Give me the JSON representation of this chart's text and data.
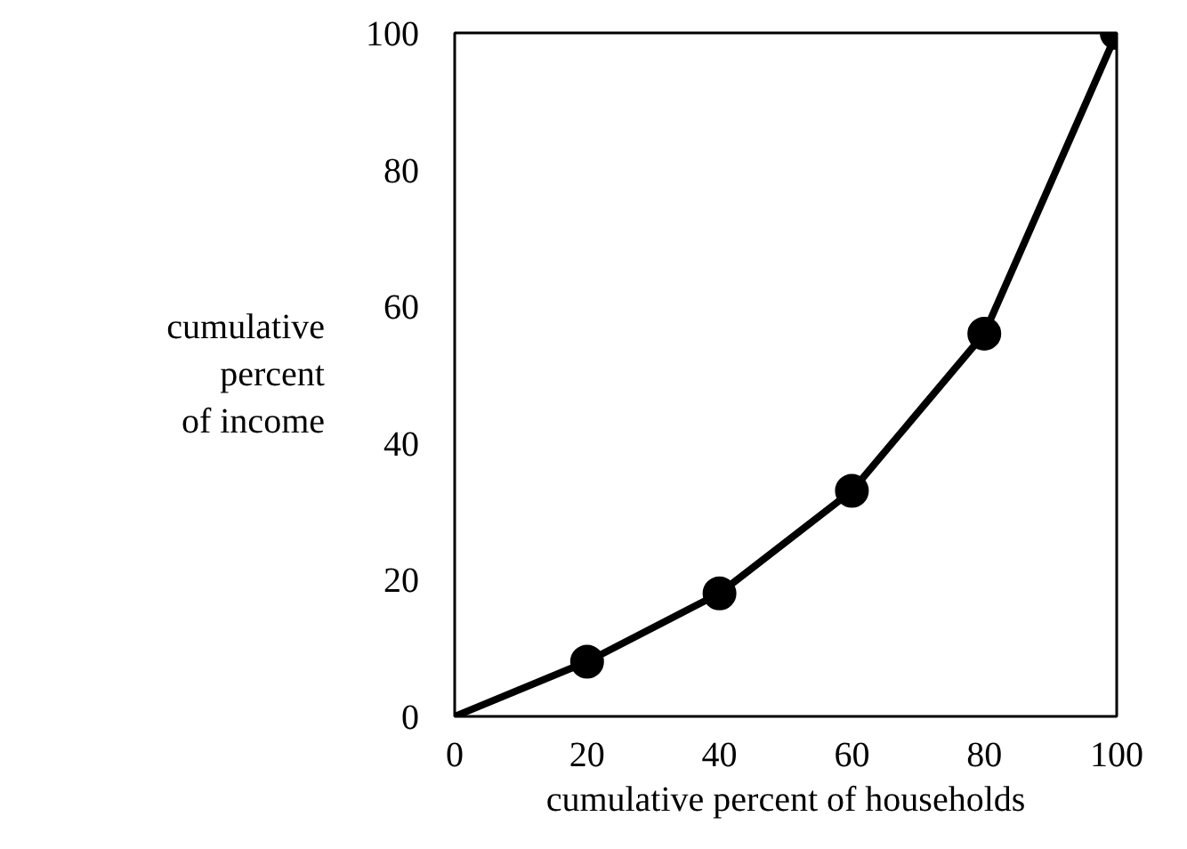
{
  "chart_data": {
    "type": "line",
    "xlabel": "cumulative percent of households",
    "ylabel": "cumulative\npercent\nof income",
    "series": [
      {
        "color": "#000000",
        "x": [
          0,
          20,
          40,
          60,
          80,
          100
        ],
        "values": [
          0,
          8,
          18,
          33,
          56,
          100
        ],
        "marker": "none"
      },
      {
        "type": "scatter",
        "color": "#000000",
        "x": [
          20,
          40,
          60,
          80,
          100
        ],
        "values": [
          8,
          18,
          33,
          56,
          100
        ],
        "marker": "circle"
      }
    ],
    "xlim": [
      0,
      100
    ],
    "ylim": [
      0,
      100
    ],
    "xticks": [
      0,
      20,
      40,
      60,
      80,
      100
    ],
    "yticks": [
      0,
      20,
      40,
      60,
      80,
      100
    ],
    "grid": false
  }
}
